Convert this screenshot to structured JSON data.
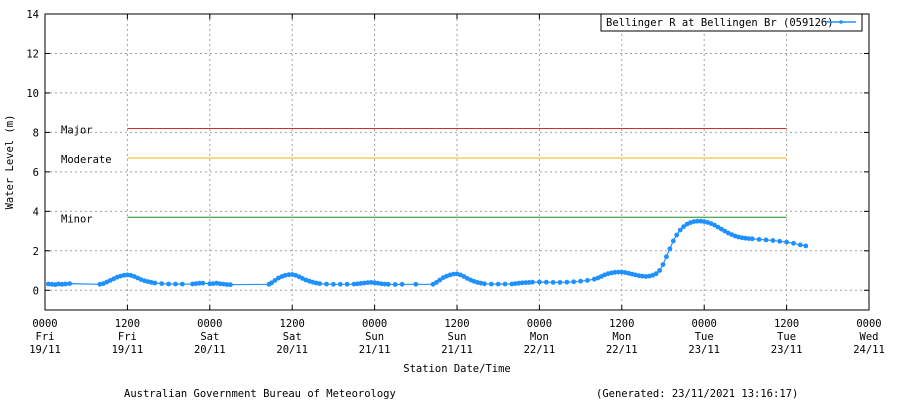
{
  "chart_data": {
    "type": "line",
    "title": "",
    "xlabel": "Station Date/Time",
    "ylabel": "Water Level (m)",
    "ylim": [
      -1,
      14
    ],
    "xlim_hours": [
      0,
      120
    ],
    "y_ticks": [
      0,
      2,
      4,
      6,
      8,
      10,
      12,
      14
    ],
    "x_ticks": [
      {
        "hour": 0,
        "lines": [
          "0000",
          "Fri",
          "19/11"
        ]
      },
      {
        "hour": 12,
        "lines": [
          "1200",
          "Fri",
          "19/11"
        ]
      },
      {
        "hour": 24,
        "lines": [
          "0000",
          "Sat",
          "20/11"
        ]
      },
      {
        "hour": 36,
        "lines": [
          "1200",
          "Sat",
          "20/11"
        ]
      },
      {
        "hour": 48,
        "lines": [
          "0000",
          "Sun",
          "21/11"
        ]
      },
      {
        "hour": 60,
        "lines": [
          "1200",
          "Sun",
          "21/11"
        ]
      },
      {
        "hour": 72,
        "lines": [
          "0000",
          "Mon",
          "22/11"
        ]
      },
      {
        "hour": 84,
        "lines": [
          "1200",
          "Mon",
          "22/11"
        ]
      },
      {
        "hour": 96,
        "lines": [
          "0000",
          "Tue",
          "23/11"
        ]
      },
      {
        "hour": 108,
        "lines": [
          "1200",
          "Tue",
          "23/11"
        ]
      },
      {
        "hour": 120,
        "lines": [
          "0000",
          "Wed",
          "24/11"
        ]
      }
    ],
    "grid": true,
    "legend_position": "top-right",
    "series": [
      {
        "name": "Bellinger R at Bellingen Br (059126)",
        "color": "#1e90ff",
        "points": [
          [
            0.5,
            0.32
          ],
          [
            1.0,
            0.3
          ],
          [
            1.5,
            0.28
          ],
          [
            2.0,
            0.32
          ],
          [
            2.5,
            0.3
          ],
          [
            3.0,
            0.32
          ],
          [
            3.6,
            0.34
          ],
          [
            8.0,
            0.3
          ],
          [
            8.5,
            0.34
          ],
          [
            9.0,
            0.42
          ],
          [
            9.5,
            0.5
          ],
          [
            10.0,
            0.58
          ],
          [
            10.5,
            0.66
          ],
          [
            11.0,
            0.72
          ],
          [
            11.5,
            0.76
          ],
          [
            12.0,
            0.78
          ],
          [
            12.5,
            0.76
          ],
          [
            13.0,
            0.7
          ],
          [
            13.5,
            0.62
          ],
          [
            14.0,
            0.54
          ],
          [
            14.5,
            0.48
          ],
          [
            15.0,
            0.44
          ],
          [
            15.5,
            0.4
          ],
          [
            16.0,
            0.37
          ],
          [
            17.0,
            0.34
          ],
          [
            18.0,
            0.32
          ],
          [
            19.0,
            0.31
          ],
          [
            20.0,
            0.31
          ],
          [
            21.5,
            0.32
          ],
          [
            22.0,
            0.34
          ],
          [
            22.5,
            0.36
          ],
          [
            23.0,
            0.36
          ],
          [
            24.0,
            0.33
          ],
          [
            24.5,
            0.34
          ],
          [
            25.0,
            0.36
          ],
          [
            25.5,
            0.33
          ],
          [
            26.0,
            0.31
          ],
          [
            26.5,
            0.29
          ],
          [
            27.0,
            0.28
          ],
          [
            32.6,
            0.3
          ],
          [
            33.0,
            0.38
          ],
          [
            33.5,
            0.5
          ],
          [
            34.0,
            0.62
          ],
          [
            34.5,
            0.7
          ],
          [
            35.0,
            0.76
          ],
          [
            35.5,
            0.79
          ],
          [
            36.0,
            0.8
          ],
          [
            36.5,
            0.76
          ],
          [
            37.0,
            0.68
          ],
          [
            37.5,
            0.6
          ],
          [
            38.0,
            0.52
          ],
          [
            38.5,
            0.46
          ],
          [
            39.0,
            0.41
          ],
          [
            39.5,
            0.37
          ],
          [
            40.0,
            0.34
          ],
          [
            41.0,
            0.31
          ],
          [
            42.0,
            0.3
          ],
          [
            43.0,
            0.3
          ],
          [
            44.0,
            0.3
          ],
          [
            45.0,
            0.31
          ],
          [
            45.5,
            0.33
          ],
          [
            46.0,
            0.35
          ],
          [
            46.5,
            0.37
          ],
          [
            47.0,
            0.39
          ],
          [
            47.5,
            0.4
          ],
          [
            48.0,
            0.38
          ],
          [
            48.5,
            0.36
          ],
          [
            49.0,
            0.33
          ],
          [
            49.5,
            0.31
          ],
          [
            50.0,
            0.3
          ],
          [
            51.0,
            0.29
          ],
          [
            52.0,
            0.3
          ],
          [
            54.0,
            0.3
          ],
          [
            56.5,
            0.3
          ],
          [
            57.0,
            0.4
          ],
          [
            57.5,
            0.52
          ],
          [
            58.0,
            0.64
          ],
          [
            58.5,
            0.72
          ],
          [
            59.0,
            0.78
          ],
          [
            59.5,
            0.82
          ],
          [
            60.0,
            0.83
          ],
          [
            60.5,
            0.78
          ],
          [
            61.0,
            0.7
          ],
          [
            61.5,
            0.6
          ],
          [
            62.0,
            0.52
          ],
          [
            62.5,
            0.45
          ],
          [
            63.0,
            0.4
          ],
          [
            63.5,
            0.36
          ],
          [
            64.0,
            0.33
          ],
          [
            65.0,
            0.31
          ],
          [
            66.0,
            0.31
          ],
          [
            67.0,
            0.31
          ],
          [
            68.0,
            0.32
          ],
          [
            68.5,
            0.34
          ],
          [
            69.0,
            0.36
          ],
          [
            69.5,
            0.38
          ],
          [
            70.0,
            0.39
          ],
          [
            70.5,
            0.4
          ],
          [
            71.0,
            0.41
          ],
          [
            72.0,
            0.42
          ],
          [
            73.0,
            0.41
          ],
          [
            74.0,
            0.4
          ],
          [
            75.0,
            0.4
          ],
          [
            76.0,
            0.41
          ],
          [
            77.0,
            0.43
          ],
          [
            78.0,
            0.46
          ],
          [
            79.0,
            0.5
          ],
          [
            80.0,
            0.56
          ],
          [
            80.5,
            0.62
          ],
          [
            81.0,
            0.7
          ],
          [
            81.5,
            0.78
          ],
          [
            82.0,
            0.84
          ],
          [
            82.5,
            0.88
          ],
          [
            83.0,
            0.91
          ],
          [
            83.5,
            0.92
          ],
          [
            84.0,
            0.92
          ],
          [
            84.5,
            0.9
          ],
          [
            85.0,
            0.86
          ],
          [
            85.5,
            0.82
          ],
          [
            86.0,
            0.78
          ],
          [
            86.5,
            0.74
          ],
          [
            87.0,
            0.72
          ],
          [
            87.5,
            0.7
          ],
          [
            88.0,
            0.72
          ],
          [
            88.5,
            0.76
          ],
          [
            89.0,
            0.84
          ],
          [
            89.5,
            1.0
          ],
          [
            90.0,
            1.3
          ],
          [
            90.5,
            1.7
          ],
          [
            91.0,
            2.1
          ],
          [
            91.5,
            2.5
          ],
          [
            92.0,
            2.8
          ],
          [
            92.5,
            3.05
          ],
          [
            93.0,
            3.22
          ],
          [
            93.5,
            3.35
          ],
          [
            94.0,
            3.43
          ],
          [
            94.5,
            3.48
          ],
          [
            95.0,
            3.5
          ],
          [
            95.5,
            3.5
          ],
          [
            96.0,
            3.48
          ],
          [
            96.5,
            3.44
          ],
          [
            97.0,
            3.38
          ],
          [
            97.5,
            3.3
          ],
          [
            98.0,
            3.2
          ],
          [
            98.5,
            3.1
          ],
          [
            99.0,
            3.0
          ],
          [
            99.5,
            2.9
          ],
          [
            100.0,
            2.82
          ],
          [
            100.5,
            2.75
          ],
          [
            101.0,
            2.7
          ],
          [
            101.5,
            2.66
          ],
          [
            102.0,
            2.64
          ],
          [
            102.5,
            2.62
          ],
          [
            103.0,
            2.61
          ],
          [
            104.0,
            2.58
          ],
          [
            105.0,
            2.55
          ],
          [
            106.0,
            2.52
          ],
          [
            107.0,
            2.48
          ],
          [
            108.0,
            2.44
          ],
          [
            109.0,
            2.38
          ],
          [
            110.0,
            2.3
          ],
          [
            110.8,
            2.25
          ]
        ]
      }
    ],
    "thresholds": [
      {
        "label": "Major",
        "value": 8.2,
        "color": "#c83232",
        "x_start_hour": 12,
        "x_end_hour": 108
      },
      {
        "label": "Moderate",
        "value": 6.7,
        "color": "#f0b400",
        "x_start_hour": 12,
        "x_end_hour": 108
      },
      {
        "label": "Minor",
        "value": 3.7,
        "color": "#228b22",
        "x_start_hour": 12,
        "x_end_hour": 108
      }
    ]
  },
  "footer": {
    "source": "Australian Government Bureau of Meteorology",
    "generated": "(Generated: 23/11/2021 13:16:17)"
  }
}
